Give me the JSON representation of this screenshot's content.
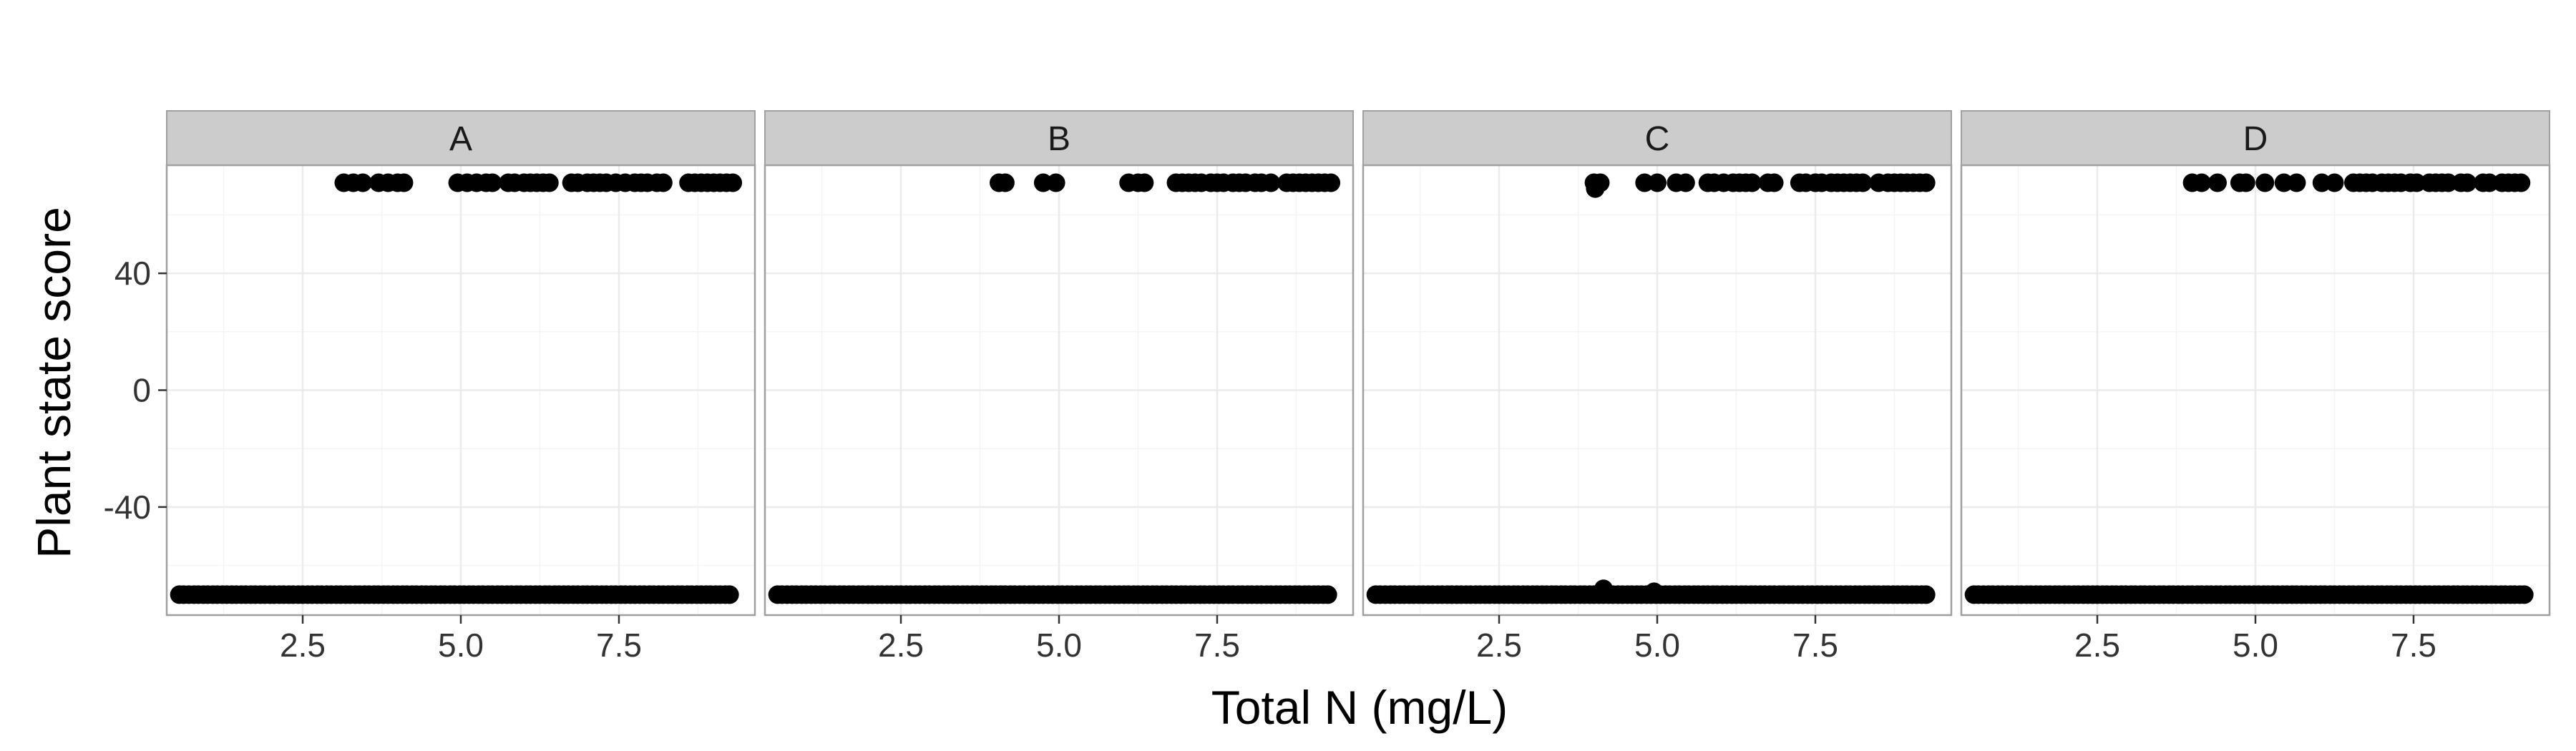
{
  "chart_data": {
    "type": "scatter",
    "facet_labels": [
      "A",
      "B",
      "C",
      "D"
    ],
    "xlabel": "Total N (mg/L)",
    "ylabel": "Plant state score",
    "xlim": [
      0.35,
      9.65
    ],
    "ylim": [
      -77,
      77
    ],
    "x_ticks": [
      2.5,
      5.0,
      7.5
    ],
    "x_tick_labels": [
      "2.5",
      "5.0",
      "7.5"
    ],
    "y_ticks": [
      -40,
      0,
      40
    ],
    "y_tick_labels": [
      "-40",
      "0",
      "40"
    ],
    "grid": true,
    "point_color": "#000000",
    "facets": [
      {
        "label": "A",
        "low_x": [
          0.55,
          0.62,
          0.7,
          0.78,
          0.85,
          0.93,
          1.0,
          1.08,
          1.15,
          1.23,
          1.3,
          1.38,
          1.45,
          1.53,
          1.6,
          1.68,
          1.75,
          1.83,
          1.9,
          1.98,
          2.05,
          2.13,
          2.2,
          2.28,
          2.35,
          2.43,
          2.5,
          2.58,
          2.65,
          2.73,
          2.8,
          2.88,
          2.95,
          3.03,
          3.1,
          3.18,
          3.25,
          3.33,
          3.4,
          3.48,
          3.55,
          3.63,
          3.7,
          3.78,
          3.85,
          3.93,
          4.0,
          4.08,
          4.15,
          4.23,
          4.3,
          4.38,
          4.45,
          4.53,
          4.6,
          4.68,
          4.75,
          4.83,
          4.9,
          4.98,
          5.05,
          5.13,
          5.2,
          5.28,
          5.35,
          5.43,
          5.5,
          5.58,
          5.65,
          5.73,
          5.8,
          5.88,
          5.95,
          6.03,
          6.1,
          6.18,
          6.25,
          6.33,
          6.4,
          6.48,
          6.55,
          6.63,
          6.7,
          6.78,
          6.85,
          6.93,
          7.0,
          7.08,
          7.15,
          7.23,
          7.3,
          7.38,
          7.45,
          7.53,
          7.6,
          7.68,
          7.75,
          7.83,
          7.9,
          7.98,
          8.05,
          8.13,
          8.2,
          8.28,
          8.35,
          8.43,
          8.5,
          8.58,
          8.65,
          8.73,
          8.8,
          8.88,
          8.95,
          9.03,
          9.1,
          9.18,
          9.25
        ],
        "low_y": -70,
        "high_x": [
          3.15,
          3.3,
          3.45,
          3.7,
          3.85,
          4.0,
          4.1,
          4.95,
          5.1,
          5.25,
          5.4,
          5.5,
          5.75,
          5.85,
          6.0,
          6.1,
          6.2,
          6.3,
          6.4,
          6.75,
          6.85,
          7.0,
          7.1,
          7.2,
          7.3,
          7.45,
          7.6,
          7.75,
          7.85,
          7.95,
          8.1,
          8.2,
          8.6,
          8.7,
          8.8,
          8.9,
          9.0,
          9.1,
          9.2,
          9.3
        ],
        "high_y": 71
      },
      {
        "label": "B",
        "low_x": [
          0.55,
          0.62,
          0.7,
          0.78,
          0.85,
          0.93,
          1.0,
          1.08,
          1.15,
          1.23,
          1.3,
          1.38,
          1.45,
          1.53,
          1.6,
          1.68,
          1.75,
          1.83,
          1.9,
          1.98,
          2.05,
          2.13,
          2.2,
          2.28,
          2.35,
          2.43,
          2.5,
          2.58,
          2.65,
          2.73,
          2.8,
          2.88,
          2.95,
          3.03,
          3.1,
          3.18,
          3.25,
          3.33,
          3.4,
          3.48,
          3.55,
          3.63,
          3.7,
          3.78,
          3.85,
          3.93,
          4.0,
          4.08,
          4.15,
          4.23,
          4.3,
          4.38,
          4.45,
          4.53,
          4.6,
          4.68,
          4.75,
          4.83,
          4.9,
          4.98,
          5.05,
          5.13,
          5.2,
          5.28,
          5.35,
          5.43,
          5.5,
          5.58,
          5.65,
          5.73,
          5.8,
          5.88,
          5.95,
          6.03,
          6.1,
          6.18,
          6.25,
          6.33,
          6.4,
          6.48,
          6.55,
          6.63,
          6.7,
          6.78,
          6.85,
          6.93,
          7.0,
          7.08,
          7.15,
          7.23,
          7.3,
          7.38,
          7.45,
          7.53,
          7.6,
          7.68,
          7.75,
          7.83,
          7.9,
          7.98,
          8.05,
          8.13,
          8.2,
          8.28,
          8.35,
          8.43,
          8.5,
          8.58,
          8.65,
          8.73,
          8.8,
          8.88,
          8.95,
          9.03,
          9.1,
          9.18,
          9.25
        ],
        "low_y": -70,
        "high_x": [
          4.05,
          4.15,
          4.75,
          4.95,
          6.1,
          6.25,
          6.35,
          6.85,
          6.95,
          7.05,
          7.15,
          7.25,
          7.4,
          7.5,
          7.6,
          7.75,
          7.85,
          7.95,
          8.1,
          8.2,
          8.35,
          8.6,
          8.7,
          8.8,
          8.9,
          9.0,
          9.1,
          9.2,
          9.3
        ],
        "high_y": 71
      },
      {
        "label": "C",
        "low_x": [
          0.55,
          0.62,
          0.7,
          0.78,
          0.85,
          0.93,
          1.0,
          1.08,
          1.15,
          1.23,
          1.3,
          1.38,
          1.45,
          1.53,
          1.6,
          1.68,
          1.75,
          1.83,
          1.9,
          1.98,
          2.05,
          2.13,
          2.2,
          2.28,
          2.35,
          2.43,
          2.5,
          2.58,
          2.65,
          2.73,
          2.8,
          2.88,
          2.95,
          3.03,
          3.1,
          3.18,
          3.25,
          3.33,
          3.4,
          3.48,
          3.55,
          3.63,
          3.7,
          3.78,
          3.85,
          3.93,
          4.0,
          4.08,
          4.15,
          4.23,
          4.3,
          4.38,
          4.45,
          4.53,
          4.6,
          4.68,
          4.75,
          4.83,
          4.9,
          4.98,
          5.05,
          5.13,
          5.2,
          5.28,
          5.35,
          5.43,
          5.5,
          5.58,
          5.65,
          5.73,
          5.8,
          5.88,
          5.95,
          6.03,
          6.1,
          6.18,
          6.25,
          6.33,
          6.4,
          6.48,
          6.55,
          6.63,
          6.7,
          6.78,
          6.85,
          6.93,
          7.0,
          7.08,
          7.15,
          7.23,
          7.3,
          7.38,
          7.45,
          7.53,
          7.6,
          7.68,
          7.75,
          7.83,
          7.9,
          7.98,
          8.05,
          8.13,
          8.2,
          8.28,
          8.35,
          8.43,
          8.5,
          8.58,
          8.65,
          8.73,
          8.8,
          8.88,
          8.95,
          9.03,
          9.1,
          9.18,
          9.25
        ],
        "low_y": -70,
        "high_x": [
          4.0,
          4.1,
          4.8,
          5.0,
          5.3,
          5.45,
          5.8,
          5.9,
          6.05,
          6.2,
          6.3,
          6.4,
          6.5,
          6.75,
          6.85,
          7.25,
          7.35,
          7.5,
          7.6,
          7.75,
          7.85,
          7.95,
          8.05,
          8.15,
          8.25,
          8.5,
          8.65,
          8.75,
          8.85,
          8.95,
          9.05,
          9.15,
          9.25
        ],
        "high_y": 71,
        "extra_points": [
          {
            "x": 4.02,
            "y": 69
          },
          {
            "x": 4.15,
            "y": -68
          },
          {
            "x": 4.95,
            "y": -69
          }
        ]
      },
      {
        "label": "D",
        "low_x": [
          0.55,
          0.62,
          0.7,
          0.78,
          0.85,
          0.93,
          1.0,
          1.08,
          1.15,
          1.23,
          1.3,
          1.38,
          1.45,
          1.53,
          1.6,
          1.68,
          1.75,
          1.83,
          1.9,
          1.98,
          2.05,
          2.13,
          2.2,
          2.28,
          2.35,
          2.43,
          2.5,
          2.58,
          2.65,
          2.73,
          2.8,
          2.88,
          2.95,
          3.03,
          3.1,
          3.18,
          3.25,
          3.33,
          3.4,
          3.48,
          3.55,
          3.63,
          3.7,
          3.78,
          3.85,
          3.93,
          4.0,
          4.08,
          4.15,
          4.23,
          4.3,
          4.38,
          4.45,
          4.53,
          4.6,
          4.68,
          4.75,
          4.83,
          4.9,
          4.98,
          5.05,
          5.13,
          5.2,
          5.28,
          5.35,
          5.43,
          5.5,
          5.58,
          5.65,
          5.73,
          5.8,
          5.88,
          5.95,
          6.03,
          6.1,
          6.18,
          6.25,
          6.33,
          6.4,
          6.48,
          6.55,
          6.63,
          6.7,
          6.78,
          6.85,
          6.93,
          7.0,
          7.08,
          7.15,
          7.23,
          7.3,
          7.38,
          7.45,
          7.53,
          7.6,
          7.68,
          7.75,
          7.83,
          7.9,
          7.98,
          8.05,
          8.13,
          8.2,
          8.28,
          8.35,
          8.43,
          8.5,
          8.58,
          8.65,
          8.73,
          8.8,
          8.88,
          8.95,
          9.03,
          9.1,
          9.18,
          9.25
        ],
        "low_y": -70,
        "high_x": [
          4.0,
          4.15,
          4.4,
          4.75,
          4.85,
          5.15,
          5.45,
          5.65,
          6.05,
          6.25,
          6.55,
          6.65,
          6.75,
          6.85,
          7.0,
          7.1,
          7.2,
          7.3,
          7.45,
          7.55,
          7.75,
          7.85,
          7.95,
          8.05,
          8.25,
          8.35,
          8.6,
          8.7,
          8.9,
          9.0,
          9.1,
          9.2
        ],
        "high_y": 71
      }
    ]
  }
}
